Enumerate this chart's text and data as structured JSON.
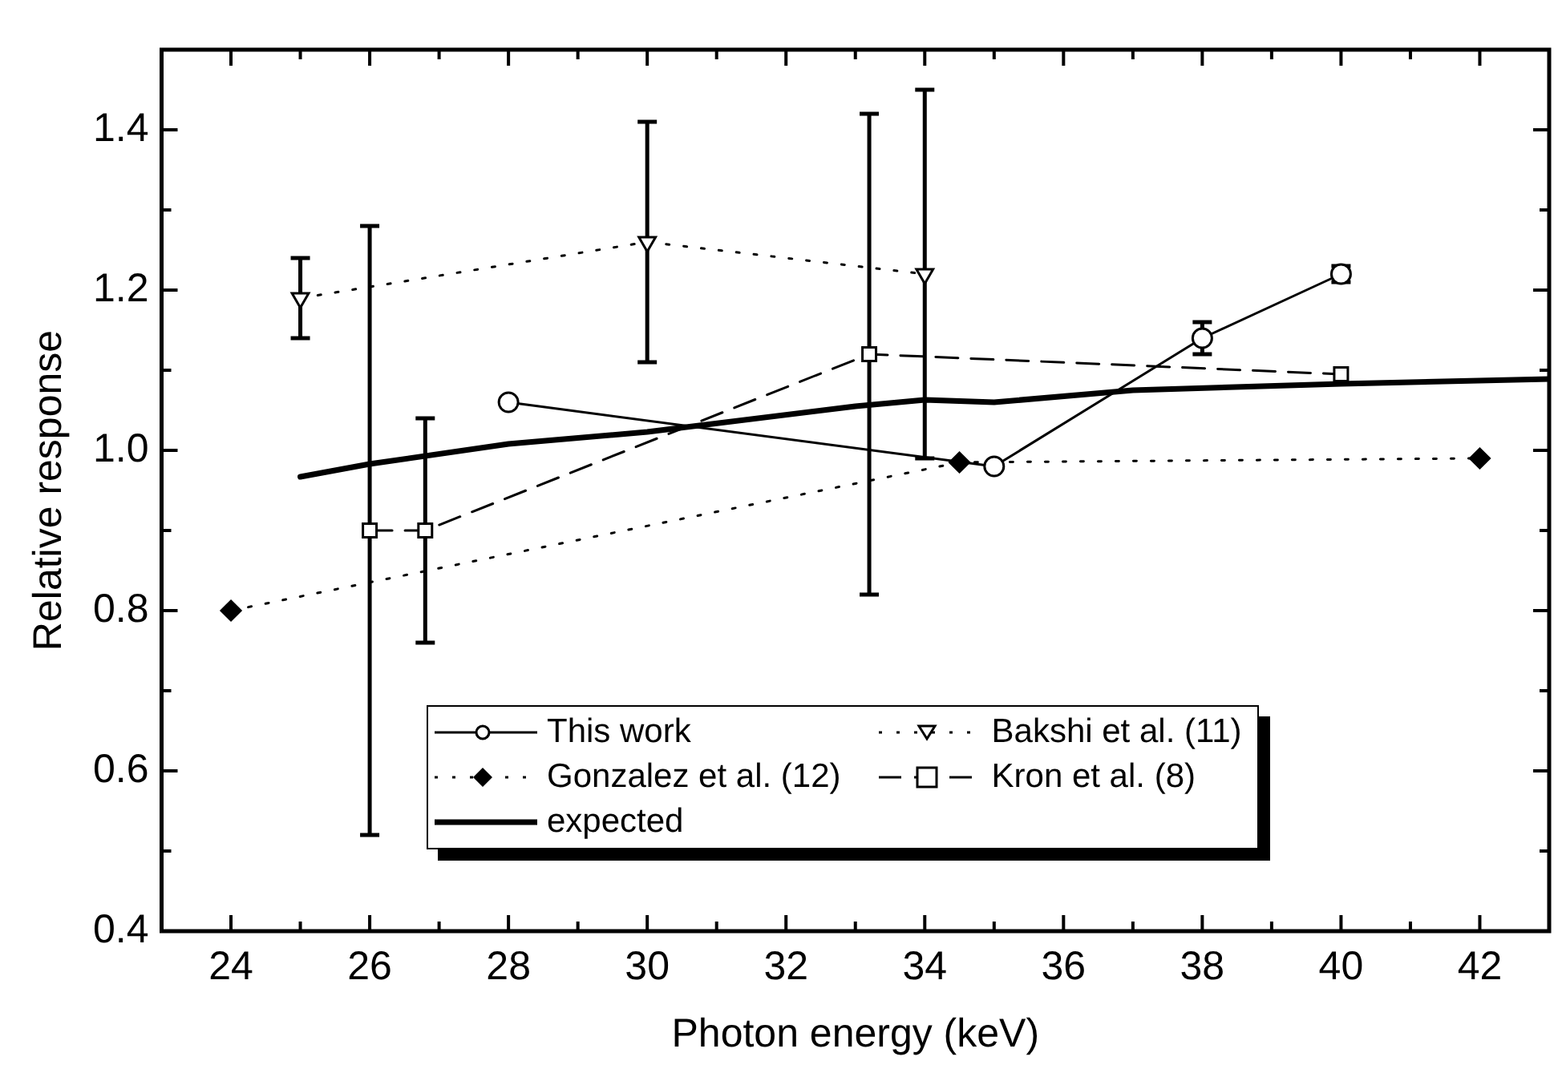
{
  "chart_data": {
    "type": "line",
    "xlabel": "Photon energy (keV)",
    "ylabel": "Relative response",
    "xlim": [
      23,
      43
    ],
    "ylim": [
      0.4,
      1.5
    ],
    "xticks": [
      {
        "value": 23,
        "label": null
      },
      24,
      {
        "value": 25,
        "label": null
      },
      26,
      {
        "value": 27,
        "label": null
      },
      28,
      {
        "value": 29,
        "label": null
      },
      30,
      {
        "value": 31,
        "label": null
      },
      32,
      {
        "value": 33,
        "label": null
      },
      34,
      {
        "value": 35,
        "label": null
      },
      36,
      {
        "value": 37,
        "label": null
      },
      38,
      {
        "value": 39,
        "label": null
      },
      40,
      {
        "value": 41,
        "label": null
      },
      42,
      {
        "value": 43,
        "label": null
      }
    ],
    "yticks": [
      0.4,
      {
        "value": 0.5,
        "label": null
      },
      0.6,
      {
        "value": 0.7,
        "label": null
      },
      0.8,
      {
        "value": 0.9,
        "label": null
      },
      {
        "value": 1.0,
        "label": "1.0"
      },
      {
        "value": 1.1,
        "label": null
      },
      1.2,
      {
        "value": 1.3,
        "label": null
      },
      1.4
    ],
    "grid": false,
    "legend": "bottom",
    "series": [
      {
        "name": "This work",
        "color": "#000000",
        "marker": "circle",
        "line_style": "solid",
        "x": [
          28,
          35,
          38,
          40
        ],
        "values": [
          1.06,
          0.98,
          1.14,
          1.22
        ],
        "errors": [
          null,
          null,
          0.02,
          0.01
        ]
      },
      {
        "name": "Bakshi et al. (11)",
        "color": "#000000",
        "marker": "triangle",
        "line_style": "dotted",
        "x": [
          25,
          30,
          34
        ],
        "values": [
          1.19,
          1.26,
          1.22
        ],
        "errors": [
          [
            1.14,
            1.24
          ],
          [
            1.11,
            1.41
          ],
          [
            0.99,
            1.45
          ]
        ]
      },
      {
        "name": "Gonzalez et al. (12)",
        "color": "#000000",
        "marker": "diamond",
        "line_style": "dotted",
        "x": [
          24,
          34.5,
          42
        ],
        "values": [
          0.8,
          0.985,
          0.99
        ]
      },
      {
        "name": "Kron et al. (8)",
        "color": "#000000",
        "marker": "square",
        "line_style": "dashed",
        "x": [
          26,
          26.8,
          33.2,
          40
        ],
        "values": [
          0.9,
          0.9,
          1.12,
          1.095
        ],
        "errors": [
          0.38,
          0.14,
          0.3,
          null
        ]
      },
      {
        "name": "expected",
        "color": "#000000",
        "marker": "none",
        "line_style": "solid",
        "x": [
          25,
          26,
          28,
          30,
          33,
          34,
          35,
          37,
          40,
          43
        ],
        "values": [
          0.967,
          0.983,
          1.008,
          1.023,
          1.055,
          1.063,
          1.06,
          1.075,
          1.083,
          1.089
        ]
      }
    ]
  }
}
